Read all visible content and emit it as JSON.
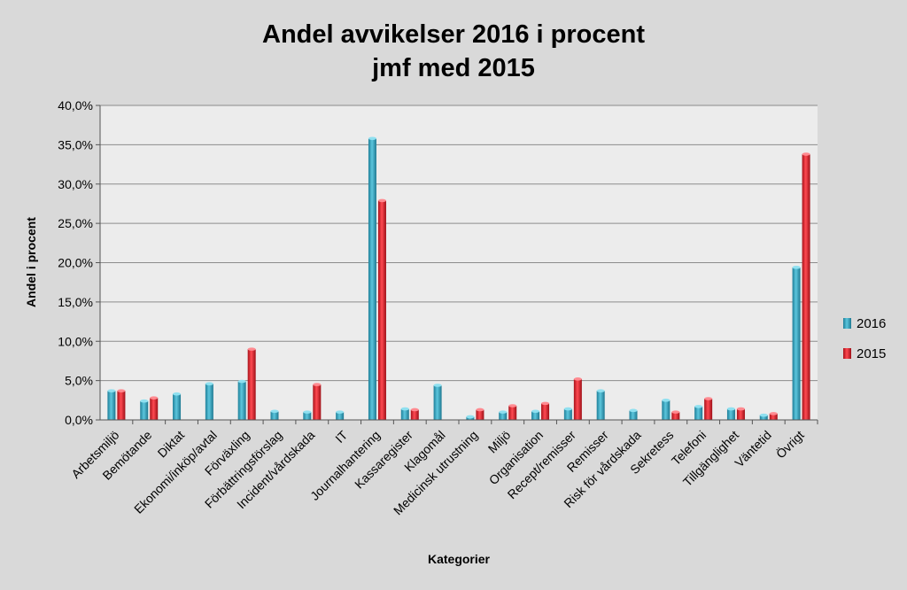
{
  "chart_data": {
    "type": "bar",
    "title_lines": [
      "Andel avvikelser 2016 i procent",
      "jmf med 2015"
    ],
    "xlabel": "Kategorier",
    "ylabel": "Andel i procent",
    "ylim": [
      0,
      40
    ],
    "ytick_step": 5,
    "ytick_labels": [
      "0,0%",
      "5,0%",
      "10,0%",
      "15,0%",
      "20,0%",
      "25,0%",
      "30,0%",
      "35,0%",
      "40,0%"
    ],
    "grid": true,
    "legend_position": "right",
    "categories": [
      "Arbetsmiljö",
      "Bemötande",
      "Diktat",
      "Ekonomi/inköp/avtal",
      "Förväxling",
      "Förbättringsförslag",
      "Incident/vårdskada",
      "IT",
      "Journalhantering",
      "Kassaregister",
      "Klagomål",
      "Medicinsk utrustning",
      "Miljö",
      "Organisation",
      "Recept/remisser",
      "Remisser",
      "Risk för vårdskada",
      "Sekretess",
      "Telefoni",
      "Tillgänglighet",
      "Väntetid",
      "Övrigt"
    ],
    "series": [
      {
        "name": "2016",
        "color": "#31a8c4",
        "values": [
          3.7,
          2.4,
          3.3,
          4.6,
          4.9,
          1.1,
          1.0,
          1.0,
          35.8,
          1.4,
          4.4,
          0.4,
          1.0,
          1.1,
          1.4,
          3.7,
          1.2,
          2.5,
          1.7,
          1.4,
          0.6,
          19.4
        ]
      },
      {
        "name": "2015",
        "color": "#e0202a",
        "values": [
          3.7,
          2.8,
          0,
          0,
          9.0,
          0,
          4.5,
          0,
          27.9,
          1.3,
          0,
          1.3,
          1.8,
          2.1,
          5.2,
          0,
          0,
          1.0,
          2.7,
          1.4,
          0.8,
          33.8
        ]
      }
    ]
  }
}
